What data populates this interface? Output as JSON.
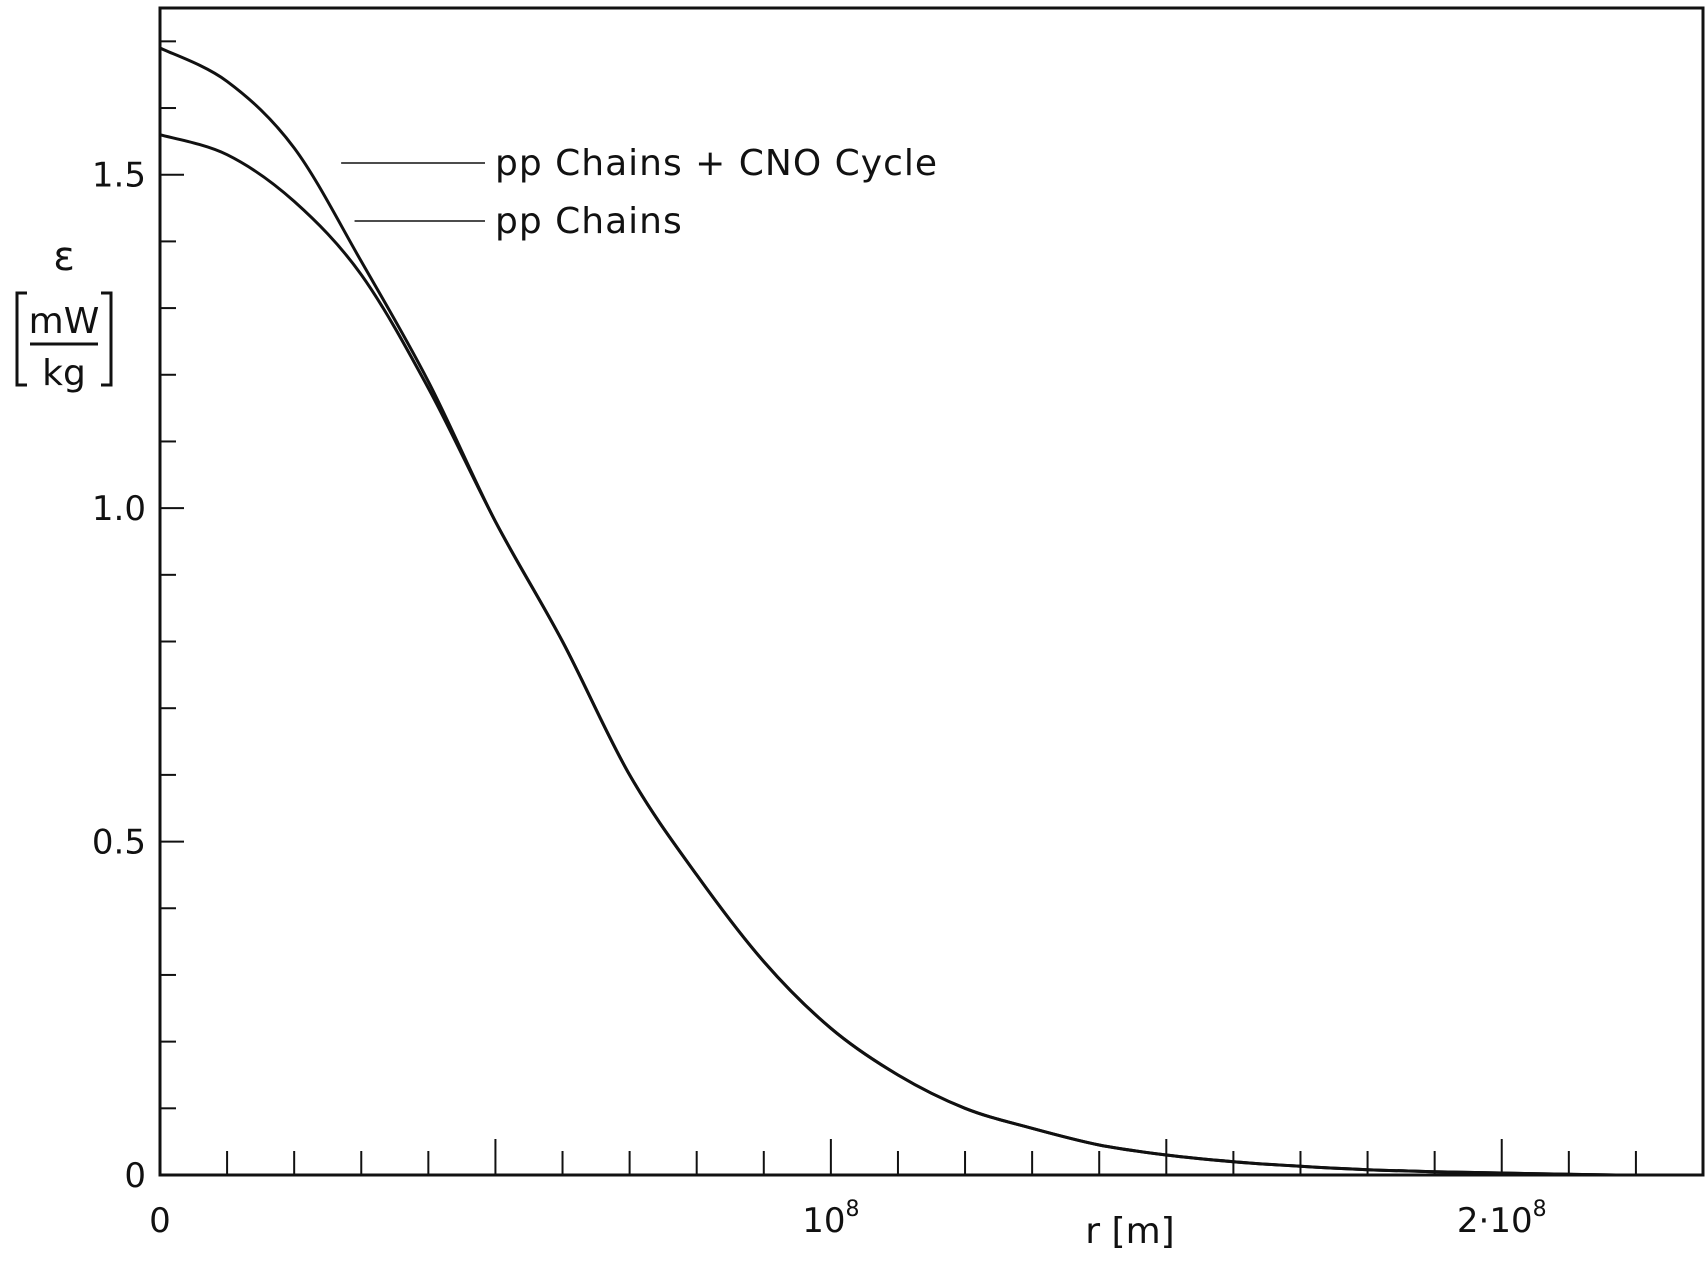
{
  "chart_data": {
    "type": "line",
    "title": "",
    "xlabel": "r [m]",
    "ylabel": {
      "symbol": "ε",
      "unit_numerator": "mW",
      "unit_denominator": "kg"
    },
    "xlim": [
      0,
      230000000
    ],
    "ylim": [
      0,
      1.75
    ],
    "x_ticks": [
      {
        "value": 0,
        "label": "0"
      },
      {
        "value": 100000000,
        "label": "10",
        "sup": "8"
      },
      {
        "value": 200000000,
        "label": "2·10",
        "sup": "8"
      }
    ],
    "y_ticks": [
      {
        "value": 0,
        "label": "0"
      },
      {
        "value": 0.5,
        "label": "0.5"
      },
      {
        "value": 1.0,
        "label": "1.0"
      },
      {
        "value": 1.5,
        "label": "1.5"
      }
    ],
    "series": [
      {
        "name": "pp Chains + CNO Cycle",
        "x": [
          0,
          10000000,
          20000000,
          30000000,
          40000000,
          50000000,
          60000000,
          70000000,
          80000000,
          90000000,
          100000000,
          110000000,
          120000000,
          130000000,
          140000000,
          150000000,
          160000000,
          170000000,
          180000000,
          190000000,
          200000000,
          210000000,
          217000000
        ],
        "y": [
          1.69,
          1.64,
          1.54,
          1.37,
          1.19,
          0.98,
          0.8,
          0.6,
          0.45,
          0.32,
          0.22,
          0.15,
          0.1,
          0.07,
          0.045,
          0.03,
          0.02,
          0.013,
          0.008,
          0.005,
          0.003,
          0.001,
          0.0
        ]
      },
      {
        "name": "pp Chains",
        "x": [
          0,
          10000000,
          20000000,
          30000000,
          40000000,
          50000000,
          60000000,
          70000000,
          80000000,
          90000000,
          100000000,
          110000000,
          120000000,
          130000000,
          140000000,
          150000000,
          160000000,
          170000000,
          180000000,
          190000000,
          200000000,
          210000000,
          217000000
        ],
        "y": [
          1.56,
          1.53,
          1.46,
          1.35,
          1.18,
          0.98,
          0.8,
          0.6,
          0.45,
          0.32,
          0.22,
          0.15,
          0.1,
          0.07,
          0.045,
          0.03,
          0.02,
          0.013,
          0.008,
          0.005,
          0.003,
          0.001,
          0.0
        ]
      }
    ],
    "annotations": [
      {
        "text": "pp Chains + CNO Cycle",
        "points_to_series": 0
      },
      {
        "text": "pp Chains",
        "points_to_series": 1
      }
    ],
    "grid": false,
    "legend": "none"
  }
}
